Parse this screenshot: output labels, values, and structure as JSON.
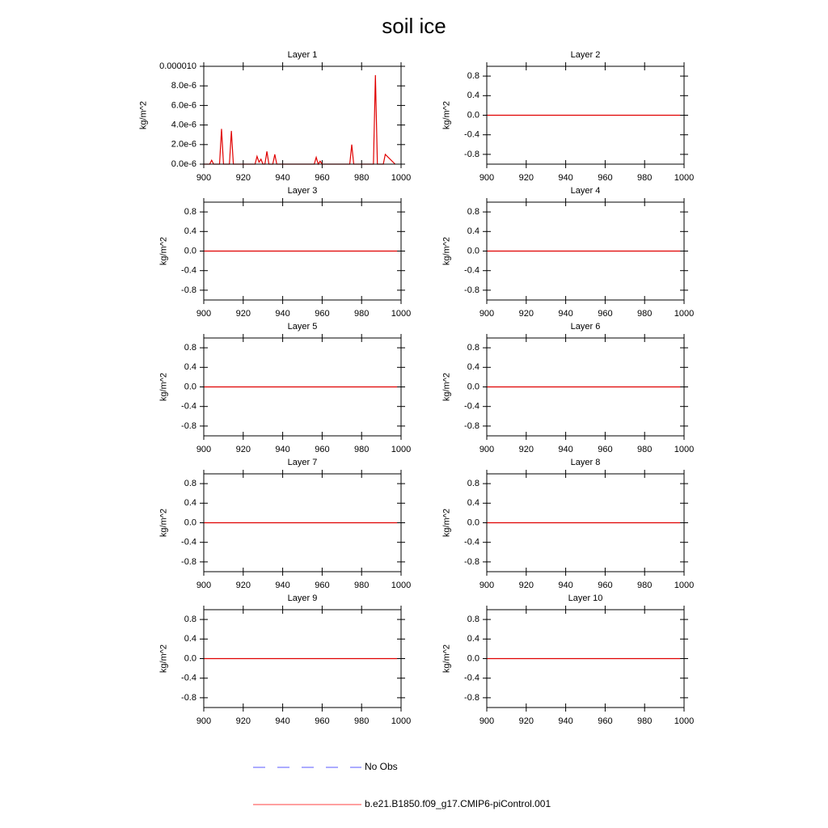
{
  "title": "soil ice",
  "legend": [
    {
      "name": "No Obs",
      "color": "#5a5aff",
      "dash": true
    },
    {
      "name": "b.e21.B1850.f09_g17.CMIP6-piControl.001",
      "color": "#ff4040",
      "dash": false
    }
  ],
  "chart_data": [
    {
      "type": "line",
      "title": "Layer 1",
      "y_label": "kg/m^2",
      "color": "#e00000",
      "x": [
        900,
        903,
        904,
        905,
        908,
        909,
        910,
        913,
        914,
        915,
        926,
        927,
        928,
        929,
        930,
        931,
        932,
        933,
        935,
        936,
        937,
        956,
        957,
        958,
        959,
        960,
        974,
        975,
        976,
        986,
        987,
        988,
        991,
        992,
        997
      ],
      "values": [
        0,
        0,
        4e-07,
        0,
        0,
        3.6e-06,
        0,
        0,
        3.4e-06,
        0,
        0,
        8e-07,
        2e-07,
        5e-07,
        0,
        0,
        1.3e-06,
        0,
        0,
        1e-06,
        0,
        0,
        7e-07,
        0,
        3e-07,
        0,
        0,
        2e-06,
        0,
        0,
        9.1e-06,
        0,
        0,
        1e-06,
        0
      ],
      "xlim": [
        900,
        1000
      ],
      "xticks": [
        900,
        920,
        940,
        960,
        980,
        1000
      ],
      "ylim": [
        0,
        1e-05
      ],
      "yticks": [
        {
          "value": 0,
          "label": "0.0e-6"
        },
        {
          "value": 2e-06,
          "label": "2.0e-6"
        },
        {
          "value": 4e-06,
          "label": "4.0e-6"
        },
        {
          "value": 6e-06,
          "label": "6.0e-6"
        },
        {
          "value": 8e-06,
          "label": "8.0e-6"
        },
        {
          "value": 1e-05,
          "label": "0.000010"
        }
      ]
    },
    {
      "type": "line",
      "title": "Layer 2",
      "y_label": "kg/m^2",
      "color": "#e00000",
      "x": [
        900,
        998
      ],
      "values": [
        0,
        0
      ],
      "xlim": [
        900,
        1000
      ],
      "xticks": [
        900,
        920,
        940,
        960,
        980,
        1000
      ],
      "ylim": [
        -1,
        1
      ],
      "yticks": [
        -0.8,
        -0.4,
        {
          "value": 0,
          "label": "0.0"
        },
        0.4,
        0.8
      ]
    },
    {
      "type": "line",
      "title": "Layer 3",
      "y_label": "kg/m^2",
      "color": "#e00000",
      "x": [
        900,
        998
      ],
      "values": [
        0,
        0
      ],
      "xlim": [
        900,
        1000
      ],
      "xticks": [
        900,
        920,
        940,
        960,
        980,
        1000
      ],
      "ylim": [
        -1,
        1
      ],
      "yticks": [
        -0.8,
        -0.4,
        {
          "value": 0,
          "label": "0.0"
        },
        0.4,
        0.8
      ]
    },
    {
      "type": "line",
      "title": "Layer 4",
      "y_label": "kg/m^2",
      "color": "#e00000",
      "x": [
        900,
        998
      ],
      "values": [
        0,
        0
      ],
      "xlim": [
        900,
        1000
      ],
      "xticks": [
        900,
        920,
        940,
        960,
        980,
        1000
      ],
      "ylim": [
        -1,
        1
      ],
      "yticks": [
        -0.8,
        -0.4,
        {
          "value": 0,
          "label": "0.0"
        },
        0.4,
        0.8
      ]
    },
    {
      "type": "line",
      "title": "Layer 5",
      "y_label": "kg/m^2",
      "color": "#e00000",
      "x": [
        900,
        998
      ],
      "values": [
        0,
        0
      ],
      "xlim": [
        900,
        1000
      ],
      "xticks": [
        900,
        920,
        940,
        960,
        980,
        1000
      ],
      "ylim": [
        -1,
        1
      ],
      "yticks": [
        -0.8,
        -0.4,
        {
          "value": 0,
          "label": "0.0"
        },
        0.4,
        0.8
      ]
    },
    {
      "type": "line",
      "title": "Layer 6",
      "y_label": "kg/m^2",
      "color": "#e00000",
      "x": [
        900,
        998
      ],
      "values": [
        0,
        0
      ],
      "xlim": [
        900,
        1000
      ],
      "xticks": [
        900,
        920,
        940,
        960,
        980,
        1000
      ],
      "ylim": [
        -1,
        1
      ],
      "yticks": [
        -0.8,
        -0.4,
        {
          "value": 0,
          "label": "0.0"
        },
        0.4,
        0.8
      ]
    },
    {
      "type": "line",
      "title": "Layer 7",
      "y_label": "kg/m^2",
      "color": "#e00000",
      "x": [
        900,
        998
      ],
      "values": [
        0,
        0
      ],
      "xlim": [
        900,
        1000
      ],
      "xticks": [
        900,
        920,
        940,
        960,
        980,
        1000
      ],
      "ylim": [
        -1,
        1
      ],
      "yticks": [
        -0.8,
        -0.4,
        {
          "value": 0,
          "label": "0.0"
        },
        0.4,
        0.8
      ]
    },
    {
      "type": "line",
      "title": "Layer 8",
      "y_label": "kg/m^2",
      "color": "#e00000",
      "x": [
        900,
        998
      ],
      "values": [
        0,
        0
      ],
      "xlim": [
        900,
        1000
      ],
      "xticks": [
        900,
        920,
        940,
        960,
        980,
        1000
      ],
      "ylim": [
        -1,
        1
      ],
      "yticks": [
        -0.8,
        -0.4,
        {
          "value": 0,
          "label": "0.0"
        },
        0.4,
        0.8
      ]
    },
    {
      "type": "line",
      "title": "Layer 9",
      "y_label": "kg/m^2",
      "color": "#e00000",
      "x": [
        900,
        998
      ],
      "values": [
        0,
        0
      ],
      "xlim": [
        900,
        1000
      ],
      "xticks": [
        900,
        920,
        940,
        960,
        980,
        1000
      ],
      "ylim": [
        -1,
        1
      ],
      "yticks": [
        -0.8,
        -0.4,
        {
          "value": 0,
          "label": "0.0"
        },
        0.4,
        0.8
      ]
    },
    {
      "type": "line",
      "title": "Layer 10",
      "y_label": "kg/m^2",
      "color": "#e00000",
      "x": [
        900,
        998
      ],
      "values": [
        0,
        0
      ],
      "xlim": [
        900,
        1000
      ],
      "xticks": [
        900,
        920,
        940,
        960,
        980,
        1000
      ],
      "ylim": [
        -1,
        1
      ],
      "yticks": [
        -0.8,
        -0.4,
        {
          "value": 0,
          "label": "0.0"
        },
        0.4,
        0.8
      ]
    }
  ]
}
